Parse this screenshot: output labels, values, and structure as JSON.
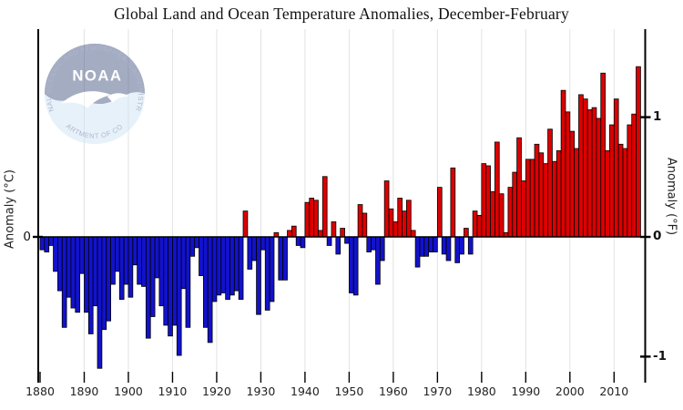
{
  "title": "Global Land and Ocean Temperature Anomalies, December-February",
  "logo": {
    "arc_top": "NATIONAL OCEANIC AND ATMOSPHERIC ADMINISTRATION",
    "arc_bottom": "U.S. DEPARTMENT OF COMMERCE",
    "monogram": "NOAA"
  },
  "y_axis_left": {
    "label": "Anomaly (°C)",
    "tick_labels": [
      "0"
    ]
  },
  "y_axis_right": {
    "label": "Anomaly (°F)",
    "tick_labels": [
      "1",
      "0",
      "-1"
    ],
    "tick_values_f": [
      1,
      0,
      -1
    ]
  },
  "x_axis": {
    "tick_labels": [
      "1880",
      "1890",
      "1900",
      "1910",
      "1920",
      "1930",
      "1940",
      "1950",
      "1960",
      "1970",
      "1980",
      "1990",
      "2000",
      "2010"
    ]
  },
  "colors": {
    "positive_bar": "#dd0000",
    "negative_bar": "#1212cc",
    "bar_outline": "#000000",
    "gridline": "#e2e2e2",
    "axis": "#000000",
    "logo_dark": "#2e3d6e",
    "logo_light": "#cfe4f6",
    "logo_text": "#8d99bd"
  },
  "chart_data": {
    "type": "bar",
    "title": "Global Land and Ocean Temperature Anomalies, December-February",
    "ylabel_left": "Anomaly (°C)",
    "ylabel_right": "Anomaly (°F)",
    "xlabel": "",
    "year_first": 1880,
    "year_last": 2015,
    "baseline": 0,
    "ylim_c": [
      -0.64,
      0.96
    ],
    "ylim_f_ticks": [
      -1,
      0,
      1
    ],
    "xlim": [
      1879.6,
      2017.1
    ],
    "grid": "vertical-decade-gridlines",
    "legend": "none",
    "values_c": [
      -0.06,
      -0.07,
      -0.04,
      -0.16,
      -0.25,
      -0.42,
      -0.28,
      -0.33,
      -0.35,
      -0.17,
      -0.35,
      -0.45,
      -0.32,
      -0.61,
      -0.43,
      -0.39,
      -0.22,
      -0.16,
      -0.29,
      -0.22,
      -0.28,
      -0.13,
      -0.22,
      -0.23,
      -0.47,
      -0.37,
      -0.19,
      -0.32,
      -0.41,
      -0.46,
      -0.41,
      -0.55,
      -0.24,
      -0.42,
      -0.09,
      -0.05,
      -0.18,
      -0.42,
      -0.49,
      -0.3,
      -0.27,
      -0.26,
      -0.29,
      -0.27,
      -0.25,
      -0.29,
      0.12,
      -0.15,
      -0.11,
      -0.36,
      -0.06,
      -0.34,
      -0.3,
      0.02,
      -0.2,
      -0.2,
      0.03,
      0.05,
      -0.04,
      -0.05,
      0.16,
      0.18,
      0.17,
      0.03,
      0.28,
      -0.04,
      0.07,
      -0.08,
      0.04,
      -0.03,
      -0.26,
      -0.27,
      0.15,
      0.11,
      -0.07,
      -0.06,
      -0.22,
      -0.11,
      0.26,
      0.13,
      0.07,
      0.18,
      0.12,
      0.17,
      0.03,
      -0.14,
      -0.09,
      -0.09,
      -0.07,
      -0.07,
      0.23,
      -0.08,
      -0.11,
      0.32,
      -0.12,
      -0.08,
      0.04,
      -0.08,
      0.12,
      0.1,
      0.34,
      0.33,
      0.21,
      0.44,
      0.2,
      0.02,
      0.23,
      0.3,
      0.46,
      0.26,
      0.36,
      0.36,
      0.43,
      0.39,
      0.34,
      0.5,
      0.35,
      0.4,
      0.68,
      0.58,
      0.49,
      0.41,
      0.66,
      0.64,
      0.59,
      0.6,
      0.55,
      0.76,
      0.4,
      0.52,
      0.64,
      0.43,
      0.41,
      0.52,
      0.57,
      0.79
    ]
  }
}
